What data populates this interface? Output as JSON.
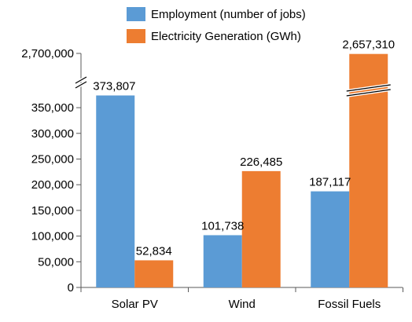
{
  "chart_data": {
    "type": "bar",
    "categories": [
      "Solar PV",
      "Wind",
      "Fossil Fuels"
    ],
    "series": [
      {
        "name": "Employment (number of jobs)",
        "values": [
          373807,
          101738,
          187117
        ],
        "labels": [
          "373,807",
          "101,738",
          "187,117"
        ],
        "color": "#5b9bd5"
      },
      {
        "name": "Electricity Generation (GWh)",
        "values": [
          52834,
          226485,
          2657310
        ],
        "labels": [
          "52,834",
          "226,485",
          "2,657,310"
        ],
        "color": "#ed7d31"
      }
    ],
    "y_ticks": [
      0,
      50000,
      100000,
      150000,
      200000,
      250000,
      300000,
      350000
    ],
    "y_tick_labels": [
      "0",
      "50,000",
      "100,000",
      "150,000",
      "200,000",
      "250,000",
      "300,000",
      "350,000"
    ],
    "y_top_tick": 2700000,
    "y_top_tick_label": "2,700,000",
    "ylim": [
      0,
      2700000
    ],
    "axis_break": true,
    "grid": false,
    "legend_position": "top"
  }
}
